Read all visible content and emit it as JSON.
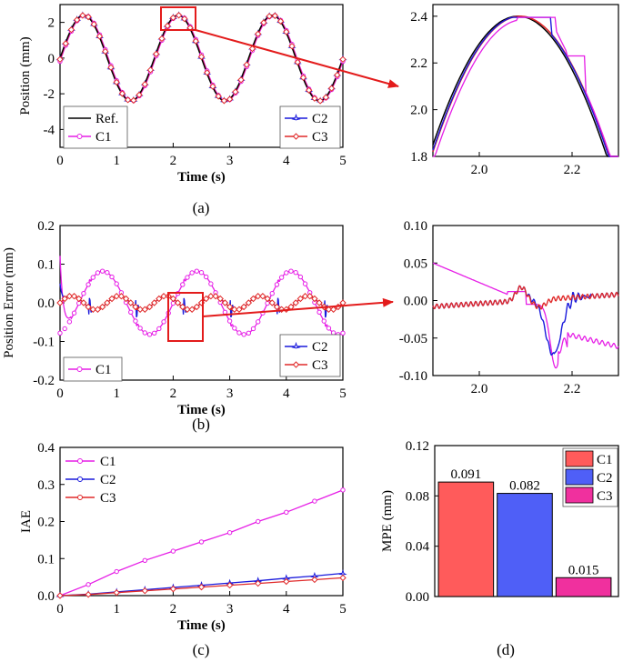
{
  "colors": {
    "ref": "#000000",
    "c1": "#e61ee6",
    "c2": "#1a1adc",
    "c3": "#e02a2a",
    "bar1": "#ff5b5b",
    "bar2": "#4f5ff7",
    "bar3": "#f0309e",
    "callout": "#e31b1b"
  },
  "chart_data": [
    {
      "id": "a",
      "type": "line",
      "caption": "(a)",
      "xlabel": "Time (s)",
      "ylabel": "Position (mm)",
      "xlim": [
        0,
        5
      ],
      "ylim": [
        -5,
        3
      ],
      "xticks": [
        "0",
        "1",
        "2",
        "3",
        "4",
        "5"
      ],
      "yticks": [
        "-4",
        "-2",
        "0",
        "2"
      ],
      "legend": [
        "Ref.",
        "C1",
        "C2",
        "C3"
      ],
      "signal": {
        "amplitude_mm": 2.4,
        "frequency_hz": 0.6
      }
    },
    {
      "id": "a_zoom",
      "type": "line",
      "xlim": [
        1.9,
        2.3
      ],
      "ylim": [
        1.8,
        2.45
      ],
      "xticks": [
        "2.0",
        "2.2"
      ],
      "yticks": [
        "1.8",
        "2.0",
        "2.2",
        "2.4"
      ]
    },
    {
      "id": "b",
      "type": "line",
      "caption": "(b)",
      "xlabel": "Time (s)",
      "ylabel": "Position Error (mm)",
      "xlim": [
        0,
        5
      ],
      "ylim": [
        -0.2,
        0.2
      ],
      "xticks": [
        "0",
        "1",
        "2",
        "3",
        "4",
        "5"
      ],
      "yticks": [
        "-0.2",
        "-0.1",
        "0.0",
        "0.1",
        "0.2"
      ],
      "legend": [
        "C1",
        "C2",
        "C3"
      ]
    },
    {
      "id": "b_zoom",
      "type": "line",
      "xlim": [
        1.9,
        2.3
      ],
      "ylim": [
        -0.1,
        0.1
      ],
      "xticks": [
        "2.0",
        "2.2"
      ],
      "yticks": [
        "-0.10",
        "-0.05",
        "0.00",
        "0.05",
        "0.10"
      ]
    },
    {
      "id": "c",
      "type": "line",
      "caption": "(c)",
      "xlabel": "Time (s)",
      "ylabel": "IAE",
      "xlim": [
        0,
        5
      ],
      "ylim": [
        0,
        0.4
      ],
      "xticks": [
        "0",
        "1",
        "2",
        "3",
        "4",
        "5"
      ],
      "yticks": [
        "0.0",
        "0.1",
        "0.2",
        "0.3",
        "0.4"
      ],
      "legend": [
        "C1",
        "C2",
        "C3"
      ],
      "series": [
        {
          "name": "C1",
          "x": [
            0,
            0.5,
            1,
            1.5,
            2,
            2.5,
            3,
            3.5,
            4,
            4.5,
            5
          ],
          "y": [
            0,
            0.03,
            0.065,
            0.095,
            0.12,
            0.145,
            0.17,
            0.2,
            0.225,
            0.255,
            0.285
          ]
        },
        {
          "name": "C2",
          "x": [
            0,
            0.5,
            1,
            1.5,
            2,
            2.5,
            3,
            3.5,
            4,
            4.5,
            5
          ],
          "y": [
            0,
            0.004,
            0.01,
            0.016,
            0.022,
            0.028,
            0.034,
            0.04,
            0.047,
            0.053,
            0.06
          ]
        },
        {
          "name": "C3",
          "x": [
            0,
            0.5,
            1,
            1.5,
            2,
            2.5,
            3,
            3.5,
            4,
            4.5,
            5
          ],
          "y": [
            0,
            0.003,
            0.008,
            0.013,
            0.018,
            0.023,
            0.028,
            0.033,
            0.038,
            0.043,
            0.048
          ]
        }
      ]
    },
    {
      "id": "d",
      "type": "bar",
      "caption": "(d)",
      "ylabel": "MPE (mm)",
      "ylim": [
        0,
        0.12
      ],
      "yticks": [
        "0.00",
        "0.04",
        "0.08",
        "0.12"
      ],
      "categories": [
        "C1",
        "C2",
        "C3"
      ],
      "values": [
        0.091,
        0.082,
        0.015
      ],
      "value_labels": [
        "0.091",
        "0.082",
        "0.015"
      ],
      "legend": [
        "C1",
        "C2",
        "C3"
      ]
    }
  ]
}
